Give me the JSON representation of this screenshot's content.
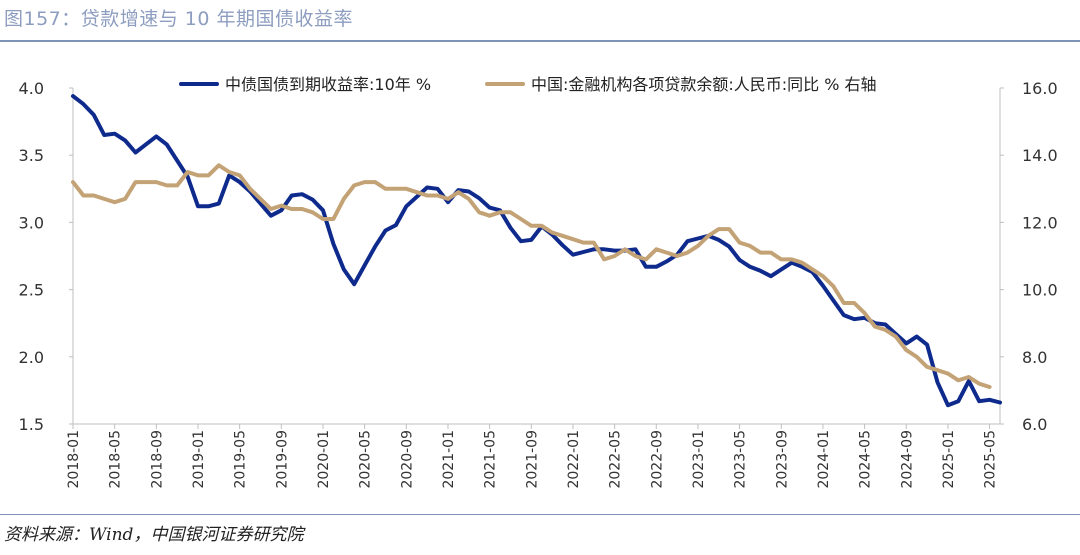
{
  "header": {
    "title": "图157：贷款增速与 10 年期国债收益率"
  },
  "footer": {
    "source": "资料来源：Wind，中国银河证券研究院"
  },
  "chart_data": {
    "type": "line",
    "title": "",
    "left_axis": {
      "ylim": [
        1.5,
        4.0
      ],
      "ticks": [
        "1.5",
        "2.0",
        "2.5",
        "3.0",
        "3.5",
        "4.0"
      ]
    },
    "right_axis": {
      "ylim": [
        6.0,
        16.0
      ],
      "ticks": [
        "6.0",
        "8.0",
        "10.0",
        "12.0",
        "14.0",
        "16.0"
      ]
    },
    "x_tick_labels": [
      "2018-01",
      "2018-05",
      "2018-09",
      "2019-01",
      "2019-05",
      "2019-09",
      "2020-01",
      "2020-05",
      "2020-09",
      "2021-01",
      "2021-05",
      "2021-09",
      "2022-01",
      "2022-05",
      "2022-09",
      "2023-01",
      "2023-05",
      "2023-09",
      "2024-01",
      "2024-05",
      "2024-09",
      "2025-01",
      "2025-05"
    ],
    "x_start": "2018-01",
    "x_end": "2025-06",
    "grid": false,
    "legend_position": "top",
    "series": [
      {
        "name": "中债国债到期收益率:10年 %",
        "axis": "left",
        "color": "#0e2a8c",
        "values": [
          3.94,
          3.88,
          3.8,
          3.65,
          3.66,
          3.61,
          3.52,
          3.58,
          3.64,
          3.58,
          3.46,
          3.34,
          3.12,
          3.12,
          3.14,
          3.35,
          3.3,
          3.23,
          3.14,
          3.05,
          3.09,
          3.2,
          3.21,
          3.17,
          3.09,
          2.84,
          2.65,
          2.54,
          2.68,
          2.82,
          2.94,
          2.98,
          3.12,
          3.19,
          3.26,
          3.25,
          3.15,
          3.24,
          3.23,
          3.18,
          3.11,
          3.09,
          2.96,
          2.86,
          2.87,
          2.97,
          2.91,
          2.83,
          2.76,
          2.78,
          2.8,
          2.8,
          2.79,
          2.79,
          2.8,
          2.67,
          2.67,
          2.71,
          2.76,
          2.86,
          2.88,
          2.9,
          2.87,
          2.82,
          2.72,
          2.67,
          2.64,
          2.6,
          2.65,
          2.7,
          2.67,
          2.63,
          2.53,
          2.42,
          2.31,
          2.28,
          2.29,
          2.25,
          2.24,
          2.17,
          2.1,
          2.15,
          2.09,
          1.81,
          1.64,
          1.67,
          1.82,
          1.67,
          1.68,
          1.66
        ]
      },
      {
        "name": "中国:金融机构各项贷款余额:人民币:同比 % 右轴",
        "axis": "right",
        "color": "#c3a276",
        "values": [
          13.2,
          12.8,
          12.8,
          12.7,
          12.6,
          12.7,
          13.2,
          13.2,
          13.2,
          13.1,
          13.1,
          13.5,
          13.4,
          13.4,
          13.7,
          13.5,
          13.4,
          13.0,
          12.7,
          12.4,
          12.5,
          12.4,
          12.4,
          12.3,
          12.1,
          12.1,
          12.7,
          13.1,
          13.2,
          13.2,
          13.0,
          13.0,
          13.0,
          12.9,
          12.8,
          12.8,
          12.7,
          12.9,
          12.7,
          12.3,
          12.2,
          12.3,
          12.3,
          12.1,
          11.9,
          11.9,
          11.7,
          11.6,
          11.5,
          11.4,
          11.4,
          10.9,
          11.0,
          11.2,
          11.0,
          10.9,
          11.2,
          11.1,
          11.0,
          11.1,
          11.3,
          11.6,
          11.8,
          11.8,
          11.4,
          11.3,
          11.1,
          11.1,
          10.9,
          10.9,
          10.8,
          10.6,
          10.4,
          10.1,
          9.6,
          9.6,
          9.3,
          8.9,
          8.8,
          8.6,
          8.2,
          8.0,
          7.7,
          7.6,
          7.5,
          7.3,
          7.4,
          7.2,
          7.1
        ]
      }
    ]
  }
}
